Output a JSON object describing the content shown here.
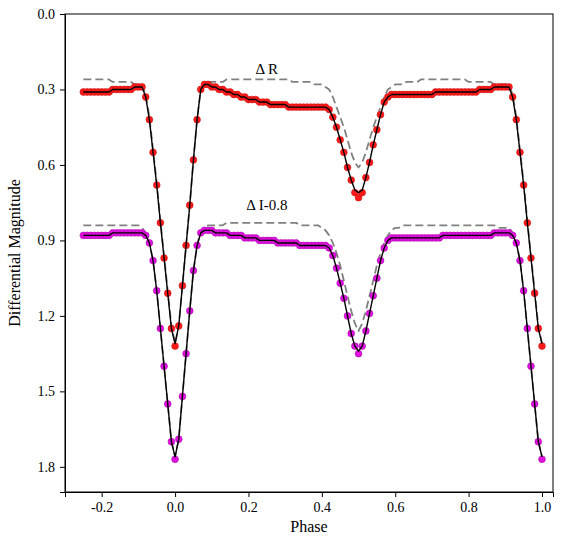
{
  "chart_data": {
    "type": "scatter",
    "x_label": "Phase",
    "y_label": "Differential Magnitude",
    "xlim": [
      -0.3,
      1.03
    ],
    "xticks": [
      -0.2,
      {
        "value": 0,
        "label": "0.0"
      },
      0.2,
      0.4,
      0.6,
      0.8,
      {
        "value": 1,
        "label": "1.0"
      }
    ],
    "ylim": [
      0,
      1.9
    ],
    "yticks": [
      {
        "value": 0,
        "label": "0.0"
      },
      0.3,
      0.6,
      0.9,
      1.2,
      1.5,
      1.8
    ],
    "annotations": [
      {
        "text": "Δ R",
        "x": 0.25,
        "y": 0.24
      },
      {
        "text": "Δ I-0.8",
        "x": 0.25,
        "y": 0.78
      }
    ],
    "x": [
      -0.25,
      -0.24,
      -0.23,
      -0.22,
      -0.21,
      -0.2,
      -0.19,
      -0.18,
      -0.17,
      -0.16,
      -0.15,
      -0.14,
      -0.13,
      -0.12,
      -0.11,
      -0.1,
      -0.09,
      -0.08,
      -0.07,
      -0.06,
      -0.05,
      -0.04,
      -0.03,
      -0.02,
      -0.01,
      0,
      0.01,
      0.02,
      0.03,
      0.04,
      0.05,
      0.06,
      0.07,
      0.08,
      0.09,
      0.1,
      0.11,
      0.12,
      0.13,
      0.14,
      0.15,
      0.16,
      0.17,
      0.18,
      0.19,
      0.2,
      0.21,
      0.22,
      0.23,
      0.24,
      0.25,
      0.26,
      0.27,
      0.28,
      0.29,
      0.3,
      0.31,
      0.32,
      0.33,
      0.34,
      0.35,
      0.36,
      0.37,
      0.38,
      0.39,
      0.4,
      0.41,
      0.42,
      0.43,
      0.44,
      0.45,
      0.46,
      0.47,
      0.48,
      0.49,
      0.5,
      0.51,
      0.52,
      0.53,
      0.54,
      0.55,
      0.56,
      0.57,
      0.58,
      0.59,
      0.6,
      0.61,
      0.62,
      0.63,
      0.64,
      0.65,
      0.66,
      0.67,
      0.68,
      0.69,
      0.7,
      0.71,
      0.72,
      0.73,
      0.74,
      0.75,
      0.76,
      0.77,
      0.78,
      0.79,
      0.8,
      0.81,
      0.82,
      0.83,
      0.84,
      0.85,
      0.86,
      0.87,
      0.88,
      0.89,
      0.9,
      0.91,
      0.92,
      0.93,
      0.94,
      0.95,
      0.96,
      0.97,
      0.98,
      0.99,
      1
    ],
    "series": [
      {
        "type": "line",
        "color": "#808080",
        "line_style": "dashed",
        "values": [
          0.26,
          0.26,
          0.26,
          0.26,
          0.26,
          0.26,
          0.26,
          0.26,
          0.27,
          0.27,
          0.27,
          0.27,
          0.27,
          0.27,
          0.28,
          0.28,
          0.28,
          0.32,
          0.41,
          0.54,
          0.67,
          0.82,
          0.96,
          1.1,
          1.24,
          1.31,
          1.24,
          1.08,
          0.92,
          0.76,
          0.58,
          0.42,
          0.3,
          0.28,
          0.27,
          0.27,
          0.27,
          0.27,
          0.27,
          0.26,
          0.26,
          0.26,
          0.26,
          0.26,
          0.26,
          0.26,
          0.26,
          0.26,
          0.26,
          0.26,
          0.26,
          0.26,
          0.26,
          0.26,
          0.26,
          0.26,
          0.26,
          0.27,
          0.27,
          0.27,
          0.27,
          0.27,
          0.27,
          0.28,
          0.28,
          0.28,
          0.29,
          0.3,
          0.33,
          0.37,
          0.41,
          0.45,
          0.5,
          0.55,
          0.59,
          0.61,
          0.59,
          0.55,
          0.5,
          0.45,
          0.41,
          0.37,
          0.33,
          0.3,
          0.29,
          0.28,
          0.28,
          0.28,
          0.27,
          0.27,
          0.27,
          0.27,
          0.26,
          0.26,
          0.26,
          0.26,
          0.26,
          0.26,
          0.26,
          0.26,
          0.26,
          0.26,
          0.26,
          0.26,
          0.26,
          0.27,
          0.27,
          0.27,
          0.27,
          0.27,
          0.27,
          0.27,
          0.28,
          0.28,
          0.28,
          0.28,
          0.28,
          0.32,
          0.41,
          0.54,
          0.67,
          0.82,
          0.96,
          1.1,
          1.24,
          1.31
        ]
      },
      {
        "type": "line",
        "color": "#808080",
        "line_style": "dashed",
        "values": [
          0.84,
          0.84,
          0.84,
          0.84,
          0.84,
          0.84,
          0.84,
          0.84,
          0.84,
          0.84,
          0.84,
          0.84,
          0.84,
          0.84,
          0.84,
          0.84,
          0.85,
          0.87,
          0.91,
          0.98,
          1.1,
          1.25,
          1.4,
          1.55,
          1.7,
          1.76,
          1.69,
          1.52,
          1.35,
          1.18,
          1.02,
          0.92,
          0.86,
          0.85,
          0.84,
          0.84,
          0.84,
          0.84,
          0.84,
          0.83,
          0.83,
          0.83,
          0.83,
          0.83,
          0.83,
          0.83,
          0.83,
          0.83,
          0.83,
          0.83,
          0.83,
          0.83,
          0.83,
          0.83,
          0.83,
          0.83,
          0.83,
          0.83,
          0.83,
          0.84,
          0.84,
          0.84,
          0.84,
          0.84,
          0.84,
          0.85,
          0.86,
          0.88,
          0.91,
          0.95,
          1.0,
          1.06,
          1.12,
          1.18,
          1.23,
          1.26,
          1.23,
          1.18,
          1.12,
          1.06,
          1.0,
          0.95,
          0.91,
          0.88,
          0.86,
          0.85,
          0.85,
          0.84,
          0.84,
          0.84,
          0.84,
          0.84,
          0.84,
          0.84,
          0.84,
          0.84,
          0.84,
          0.84,
          0.84,
          0.84,
          0.84,
          0.84,
          0.84,
          0.84,
          0.84,
          0.84,
          0.84,
          0.84,
          0.84,
          0.84,
          0.84,
          0.84,
          0.84,
          0.85,
          0.85,
          0.85,
          0.85,
          0.87,
          0.91,
          0.98,
          1.1,
          1.25,
          1.4,
          1.55,
          1.7,
          1.76
        ]
      },
      {
        "type": "scatter",
        "color": "#ff1a1a",
        "marker": "circle",
        "values": [
          0.31,
          0.31,
          0.31,
          0.31,
          0.31,
          0.31,
          0.31,
          0.31,
          0.3,
          0.3,
          0.3,
          0.3,
          0.3,
          0.3,
          0.29,
          0.29,
          0.29,
          0.33,
          0.42,
          0.55,
          0.68,
          0.83,
          0.97,
          1.11,
          1.25,
          1.32,
          1.24,
          1.08,
          0.92,
          0.76,
          0.58,
          0.42,
          0.3,
          0.28,
          0.28,
          0.29,
          0.29,
          0.3,
          0.3,
          0.31,
          0.31,
          0.32,
          0.32,
          0.33,
          0.33,
          0.34,
          0.34,
          0.34,
          0.35,
          0.35,
          0.35,
          0.36,
          0.36,
          0.36,
          0.36,
          0.36,
          0.37,
          0.37,
          0.37,
          0.37,
          0.37,
          0.37,
          0.37,
          0.37,
          0.37,
          0.37,
          0.37,
          0.38,
          0.41,
          0.45,
          0.5,
          0.55,
          0.61,
          0.66,
          0.71,
          0.73,
          0.71,
          0.65,
          0.59,
          0.52,
          0.46,
          0.4,
          0.35,
          0.33,
          0.32,
          0.32,
          0.32,
          0.32,
          0.32,
          0.32,
          0.32,
          0.32,
          0.32,
          0.32,
          0.32,
          0.32,
          0.31,
          0.31,
          0.31,
          0.31,
          0.31,
          0.31,
          0.31,
          0.31,
          0.31,
          0.31,
          0.31,
          0.31,
          0.3,
          0.3,
          0.3,
          0.3,
          0.29,
          0.29,
          0.29,
          0.29,
          0.29,
          0.33,
          0.42,
          0.55,
          0.68,
          0.83,
          0.97,
          1.11,
          1.25,
          1.32
        ]
      },
      {
        "type": "scatter",
        "color": "#e010e0",
        "marker": "circle",
        "values": [
          0.88,
          0.88,
          0.88,
          0.88,
          0.88,
          0.88,
          0.88,
          0.88,
          0.87,
          0.87,
          0.87,
          0.87,
          0.87,
          0.87,
          0.87,
          0.87,
          0.87,
          0.88,
          0.91,
          0.98,
          1.1,
          1.25,
          1.4,
          1.55,
          1.7,
          1.77,
          1.69,
          1.52,
          1.35,
          1.18,
          1.02,
          0.92,
          0.87,
          0.86,
          0.86,
          0.86,
          0.87,
          0.87,
          0.87,
          0.87,
          0.88,
          0.88,
          0.88,
          0.88,
          0.89,
          0.89,
          0.89,
          0.89,
          0.9,
          0.9,
          0.9,
          0.9,
          0.9,
          0.91,
          0.91,
          0.91,
          0.91,
          0.91,
          0.91,
          0.92,
          0.92,
          0.92,
          0.92,
          0.92,
          0.92,
          0.92,
          0.92,
          0.93,
          0.96,
          1.01,
          1.07,
          1.13,
          1.2,
          1.27,
          1.32,
          1.35,
          1.32,
          1.26,
          1.19,
          1.12,
          1.05,
          0.98,
          0.93,
          0.9,
          0.89,
          0.89,
          0.89,
          0.89,
          0.89,
          0.89,
          0.89,
          0.89,
          0.89,
          0.89,
          0.89,
          0.89,
          0.89,
          0.89,
          0.88,
          0.88,
          0.88,
          0.88,
          0.88,
          0.88,
          0.88,
          0.88,
          0.88,
          0.88,
          0.88,
          0.88,
          0.88,
          0.88,
          0.87,
          0.87,
          0.87,
          0.87,
          0.87,
          0.88,
          0.91,
          0.98,
          1.1,
          1.25,
          1.4,
          1.55,
          1.7,
          1.77
        ]
      },
      {
        "type": "line",
        "color": "#000000",
        "line_style": "solid",
        "values": [
          0.31,
          0.31,
          0.31,
          0.31,
          0.31,
          0.31,
          0.31,
          0.31,
          0.3,
          0.3,
          0.3,
          0.3,
          0.3,
          0.3,
          0.29,
          0.29,
          0.29,
          0.33,
          0.42,
          0.55,
          0.68,
          0.83,
          0.97,
          1.11,
          1.25,
          1.31,
          1.24,
          1.08,
          0.92,
          0.76,
          0.58,
          0.42,
          0.3,
          0.28,
          0.28,
          0.29,
          0.29,
          0.3,
          0.3,
          0.31,
          0.31,
          0.32,
          0.32,
          0.33,
          0.33,
          0.34,
          0.34,
          0.34,
          0.35,
          0.35,
          0.35,
          0.36,
          0.36,
          0.36,
          0.36,
          0.36,
          0.37,
          0.37,
          0.37,
          0.37,
          0.37,
          0.37,
          0.37,
          0.37,
          0.37,
          0.37,
          0.37,
          0.38,
          0.41,
          0.45,
          0.5,
          0.55,
          0.61,
          0.66,
          0.7,
          0.71,
          0.7,
          0.65,
          0.59,
          0.52,
          0.46,
          0.4,
          0.35,
          0.33,
          0.32,
          0.32,
          0.32,
          0.32,
          0.32,
          0.32,
          0.32,
          0.32,
          0.32,
          0.32,
          0.32,
          0.32,
          0.31,
          0.31,
          0.31,
          0.31,
          0.31,
          0.31,
          0.31,
          0.31,
          0.31,
          0.31,
          0.31,
          0.31,
          0.3,
          0.3,
          0.3,
          0.3,
          0.29,
          0.29,
          0.29,
          0.29,
          0.29,
          0.33,
          0.42,
          0.55,
          0.68,
          0.83,
          0.97,
          1.11,
          1.25,
          1.31
        ]
      },
      {
        "type": "line",
        "color": "#000000",
        "line_style": "solid",
        "values": [
          0.88,
          0.88,
          0.88,
          0.88,
          0.88,
          0.88,
          0.88,
          0.88,
          0.87,
          0.87,
          0.87,
          0.87,
          0.87,
          0.87,
          0.87,
          0.87,
          0.87,
          0.88,
          0.91,
          0.98,
          1.1,
          1.25,
          1.4,
          1.55,
          1.7,
          1.76,
          1.69,
          1.52,
          1.35,
          1.18,
          1.02,
          0.92,
          0.87,
          0.86,
          0.86,
          0.86,
          0.87,
          0.87,
          0.87,
          0.87,
          0.88,
          0.88,
          0.88,
          0.88,
          0.89,
          0.89,
          0.89,
          0.89,
          0.9,
          0.9,
          0.9,
          0.9,
          0.9,
          0.91,
          0.91,
          0.91,
          0.91,
          0.91,
          0.91,
          0.92,
          0.92,
          0.92,
          0.92,
          0.92,
          0.92,
          0.92,
          0.92,
          0.93,
          0.96,
          1.01,
          1.07,
          1.13,
          1.2,
          1.27,
          1.32,
          1.34,
          1.32,
          1.26,
          1.19,
          1.12,
          1.05,
          0.98,
          0.93,
          0.9,
          0.89,
          0.89,
          0.89,
          0.89,
          0.89,
          0.89,
          0.89,
          0.89,
          0.89,
          0.89,
          0.89,
          0.89,
          0.89,
          0.89,
          0.88,
          0.88,
          0.88,
          0.88,
          0.88,
          0.88,
          0.88,
          0.88,
          0.88,
          0.88,
          0.88,
          0.88,
          0.88,
          0.88,
          0.87,
          0.87,
          0.87,
          0.87,
          0.87,
          0.88,
          0.91,
          0.98,
          1.1,
          1.25,
          1.4,
          1.55,
          1.7,
          1.76
        ]
      }
    ]
  }
}
